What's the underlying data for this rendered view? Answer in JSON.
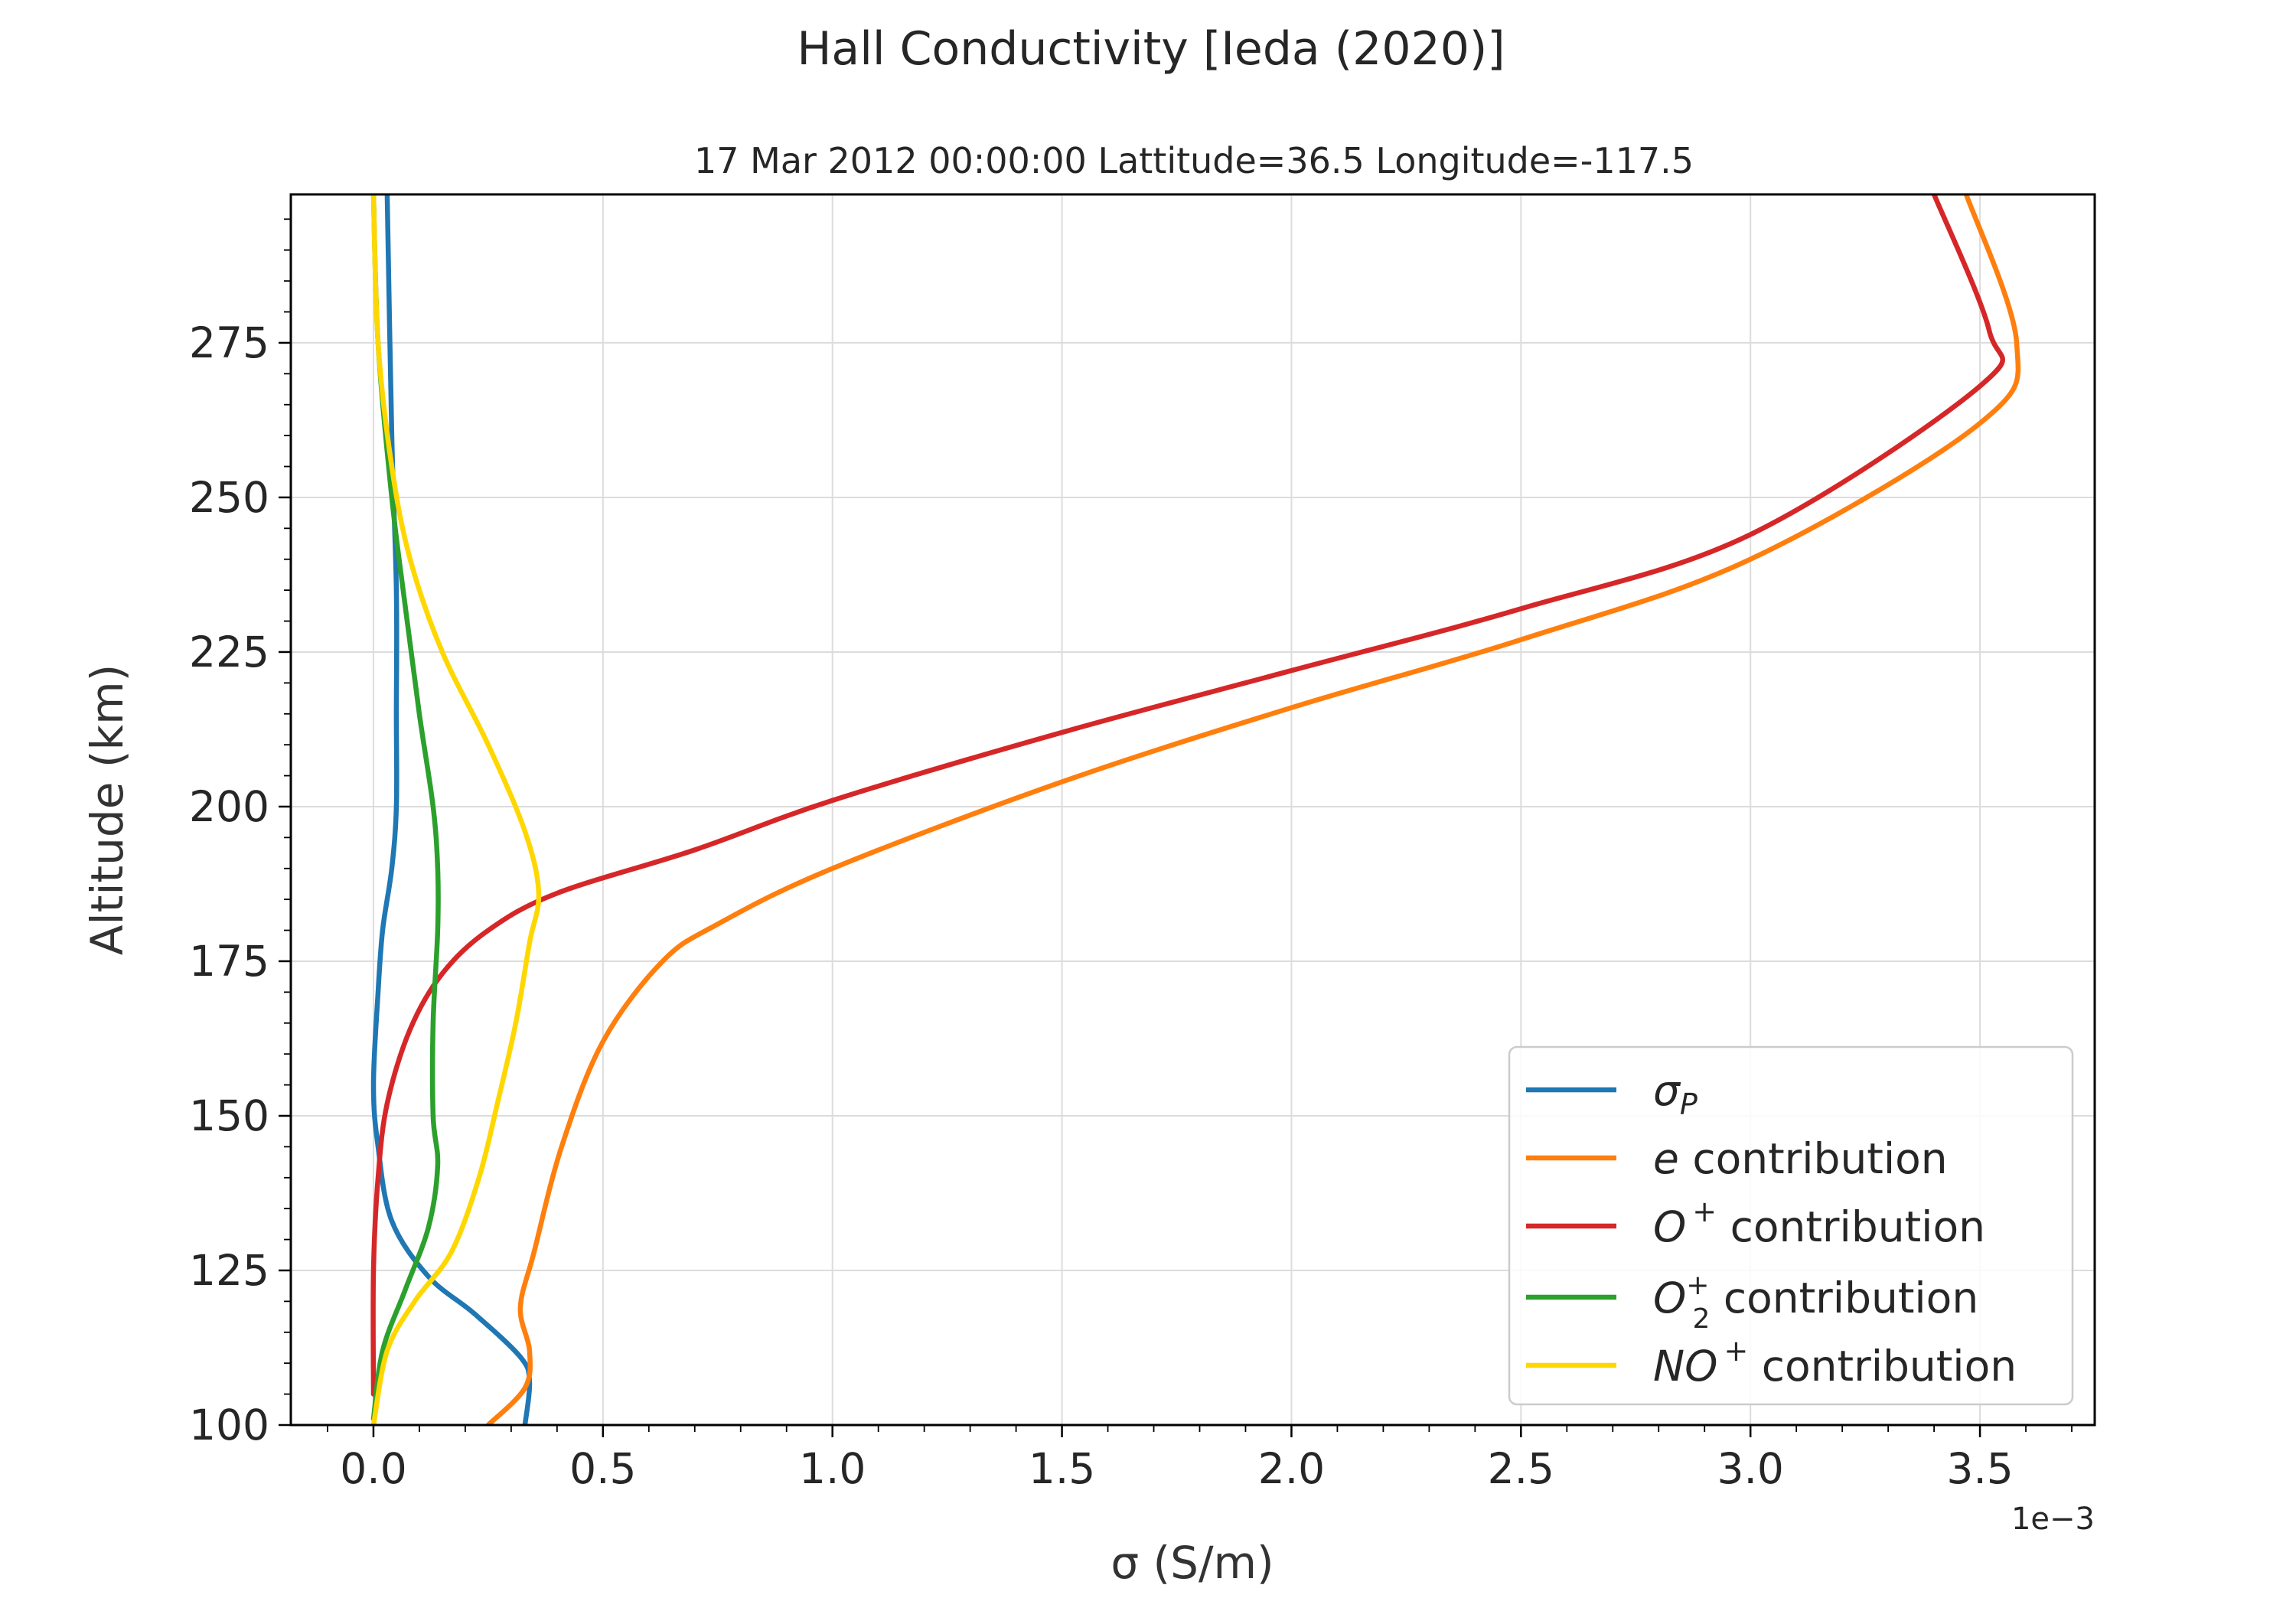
{
  "chart_data": {
    "type": "line",
    "title": "Hall Conductivity [Ieda (2020)]",
    "subtitle": "17 Mar 2012 00:00:00 Lattitude=36.5 Longitude=-117.5",
    "xlabel": "σ (S/m)",
    "ylabel": "Altitude (km)",
    "x_offset_label": "1e−3",
    "x_scale": 0.001,
    "xlim": [
      -0.00018,
      0.00375
    ],
    "ylim": [
      100,
      299
    ],
    "xticks": [
      0.0,
      0.5,
      1.0,
      1.5,
      2.0,
      2.5,
      3.0,
      3.5
    ],
    "xtick_labels": [
      "0.0",
      "0.5",
      "1.0",
      "1.5",
      "2.0",
      "2.5",
      "3.0",
      "3.5"
    ],
    "yticks": [
      100,
      125,
      150,
      175,
      200,
      225,
      250,
      275
    ],
    "ytick_labels": [
      "100",
      "125",
      "150",
      "175",
      "200",
      "225",
      "250",
      "275"
    ],
    "grid": true,
    "legend_position": "lower-right",
    "series": [
      {
        "name": "σP",
        "legend_main": "σ",
        "legend_sub": "P",
        "legend_sup": "",
        "legend_suffix": "",
        "color": "#1f77b4",
        "points": [
          [
            0.00033,
            100
          ],
          [
            0.00034,
            107
          ],
          [
            0.00032,
            111
          ],
          [
            0.00022,
            118
          ],
          [
            0.00012,
            124
          ],
          [
            4e-05,
            133
          ],
          [
            1e-05,
            145
          ],
          [
            0.0,
            155
          ],
          [
            1e-05,
            170
          ],
          [
            2e-05,
            180
          ],
          [
            4e-05,
            190
          ],
          [
            5e-05,
            200
          ],
          [
            5e-05,
            215
          ],
          [
            5e-05,
            235
          ],
          [
            4e-05,
            260
          ],
          [
            3e-05,
            299
          ]
        ]
      },
      {
        "name": "e contribution",
        "legend_main": "e",
        "legend_sub": "",
        "legend_sup": "",
        "legend_suffix": " contribution",
        "color": "#ff7f0e",
        "points": [
          [
            0.00025,
            100
          ],
          [
            0.00033,
            106
          ],
          [
            0.00034,
            112
          ],
          [
            0.00032,
            119
          ],
          [
            0.00035,
            128
          ],
          [
            0.00041,
            145
          ],
          [
            0.0005,
            162
          ],
          [
            0.00063,
            175
          ],
          [
            0.00075,
            181
          ],
          [
            0.001,
            190
          ],
          [
            0.0015,
            204
          ],
          [
            0.002,
            216
          ],
          [
            0.0025,
            227
          ],
          [
            0.003,
            240
          ],
          [
            0.0035,
            262
          ],
          [
            0.00358,
            275
          ],
          [
            0.00347,
            299
          ]
        ]
      },
      {
        "name": "O+ contribution",
        "legend_main": "O",
        "legend_sub": "",
        "legend_sup": "+",
        "legend_suffix": "  contribution",
        "color": "#d62728",
        "points": [
          [
            0.0,
            105
          ],
          [
            0.0,
            125
          ],
          [
            1e-05,
            140
          ],
          [
            3e-05,
            152
          ],
          [
            8e-05,
            164
          ],
          [
            0.00015,
            173
          ],
          [
            0.00025,
            180
          ],
          [
            0.0004,
            186
          ],
          [
            0.0007,
            193
          ],
          [
            0.001,
            201
          ],
          [
            0.0015,
            212
          ],
          [
            0.002,
            222
          ],
          [
            0.0025,
            232
          ],
          [
            0.003,
            244
          ],
          [
            0.0035,
            268
          ],
          [
            0.00352,
            277
          ],
          [
            0.0034,
            299
          ]
        ]
      },
      {
        "name": "O2+ contribution",
        "legend_main": "O",
        "legend_sub": "2",
        "legend_sup": "+",
        "legend_suffix": "  contribution",
        "color": "#2ca02c",
        "points": [
          [
            0.0,
            101
          ],
          [
            2e-05,
            112
          ],
          [
            7e-05,
            122
          ],
          [
            0.00012,
            132
          ],
          [
            0.00014,
            142
          ],
          [
            0.00013,
            150
          ],
          [
            0.00013,
            165
          ],
          [
            0.00014,
            180
          ],
          [
            0.00014,
            190
          ],
          [
            0.00013,
            200
          ],
          [
            0.0001,
            215
          ],
          [
            7e-05,
            232
          ],
          [
            4e-05,
            250
          ],
          [
            1e-05,
            275
          ],
          [
            0.0,
            299
          ]
        ]
      },
      {
        "name": "NO+ contribution",
        "legend_main": "NO",
        "legend_sub": "",
        "legend_sup": "+",
        "legend_suffix": "  contribution",
        "color": "#ffd700",
        "points": [
          [
            0.0,
            100
          ],
          [
            3e-05,
            112
          ],
          [
            9e-05,
            120
          ],
          [
            0.00017,
            128
          ],
          [
            0.00023,
            140
          ],
          [
            0.00027,
            152
          ],
          [
            0.00031,
            165
          ],
          [
            0.00034,
            178
          ],
          [
            0.00036,
            186
          ],
          [
            0.00033,
            196
          ],
          [
            0.00025,
            210
          ],
          [
            0.00015,
            225
          ],
          [
            8e-05,
            240
          ],
          [
            4e-05,
            255
          ],
          [
            1e-05,
            275
          ],
          [
            0.0,
            299
          ]
        ]
      }
    ]
  }
}
